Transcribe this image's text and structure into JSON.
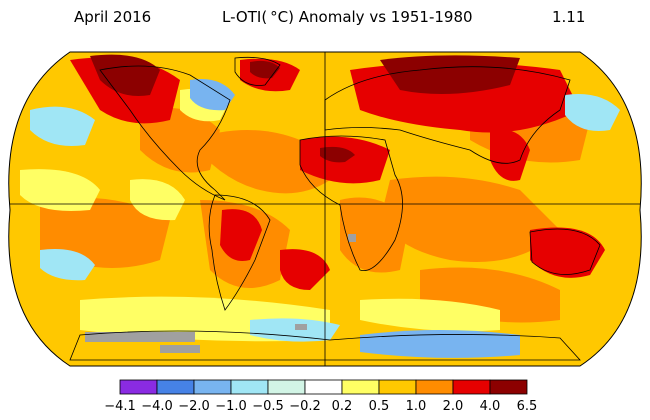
{
  "header": {
    "period": "April 2016",
    "title": "L-OTI( °C) Anomaly vs 1951-1980",
    "global_mean": "1.11"
  },
  "legend": {
    "ticks": [
      "−4.1",
      "−4.0",
      "−2.0",
      "−1.0",
      "−0.5",
      "−0.2",
      "0.2",
      "0.5",
      "1.0",
      "2.0",
      "4.0",
      "6.5"
    ],
    "colors": [
      "#8a2be2",
      "#4682e6",
      "#78b4f0",
      "#a0e6f5",
      "#d2f5e6",
      "#ffffff",
      "#ffff64",
      "#ffc800",
      "#ff8c00",
      "#e60000",
      "#8c0000"
    ]
  },
  "map": {
    "projection": "robinson",
    "colors": {
      "ocean_base": "#ffc800",
      "moderate": "#ff8c00",
      "warm": "#e60000",
      "hot": "#8c0000",
      "slight": "#ffff64",
      "cool": "#a0e6f5",
      "cold": "#78b4f0",
      "no_data": "#a0a0a0",
      "coast": "#000000"
    }
  }
}
